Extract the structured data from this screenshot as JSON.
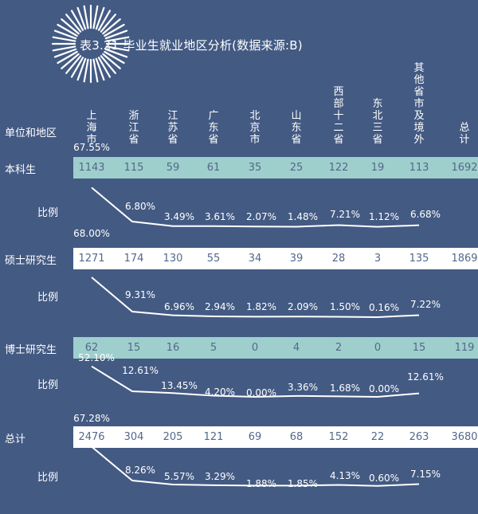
{
  "title": "表3.21 毕业生就业地区分析(数据来源:B)",
  "header_label": "单位和地区",
  "ratio_label": "比例",
  "chart_data": {
    "type": "table",
    "columns": [
      "上海市",
      "浙江省",
      "江苏省",
      "广东省",
      "北京市",
      "山东省",
      "西部十二省",
      "东北三省",
      "其他省市及境外",
      "总计"
    ],
    "rows": [
      {
        "label": "本科生",
        "values": [
          "1143",
          "115",
          "59",
          "61",
          "35",
          "25",
          "122",
          "19",
          "113",
          "1692"
        ],
        "ratios": [
          "67.55%",
          "6.80%",
          "3.49%",
          "3.61%",
          "2.07%",
          "1.48%",
          "7.21%",
          "1.12%",
          "6.68%"
        ],
        "ratio_values": [
          67.55,
          6.8,
          3.49,
          3.61,
          2.07,
          1.48,
          7.21,
          1.12,
          6.68
        ]
      },
      {
        "label": "硕士研究生",
        "values": [
          "1271",
          "174",
          "130",
          "55",
          "34",
          "39",
          "28",
          "3",
          "135",
          "1869"
        ],
        "ratios": [
          "68.00%",
          "9.31%",
          "6.96%",
          "2.94%",
          "1.82%",
          "2.09%",
          "1.50%",
          "0.16%",
          "7.22%"
        ],
        "ratio_values": [
          68.0,
          9.31,
          6.96,
          2.94,
          1.82,
          2.09,
          1.5,
          0.16,
          7.22
        ]
      },
      {
        "label": "博士研究生",
        "values": [
          "62",
          "15",
          "16",
          "5",
          "0",
          "4",
          "2",
          "0",
          "15",
          "119"
        ],
        "ratios": [
          "52.10%",
          "12.61%",
          "13.45%",
          "4.20%",
          "0.00%",
          "3.36%",
          "1.68%",
          "0.00%",
          "12.61%"
        ],
        "ratio_values": [
          52.1,
          12.61,
          13.45,
          4.2,
          0.0,
          3.36,
          1.68,
          0.0,
          12.61
        ]
      },
      {
        "label": "总计",
        "values": [
          "2476",
          "304",
          "205",
          "121",
          "69",
          "68",
          "152",
          "22",
          "263",
          "3680"
        ],
        "ratios": [
          "67.28%",
          "8.26%",
          "5.57%",
          "3.29%",
          "1.88%",
          "1.85%",
          "4.13%",
          "0.60%",
          "7.15%"
        ],
        "ratio_values": [
          67.28,
          8.26,
          5.57,
          3.29,
          1.88,
          1.85,
          4.13,
          0.6,
          7.15
        ]
      }
    ]
  },
  "colors": {
    "background": "#435a83",
    "band_teal": "#9ecfcc",
    "band_white": "#ffffff",
    "cell_text": "#53688c",
    "line": "#ffffff"
  }
}
